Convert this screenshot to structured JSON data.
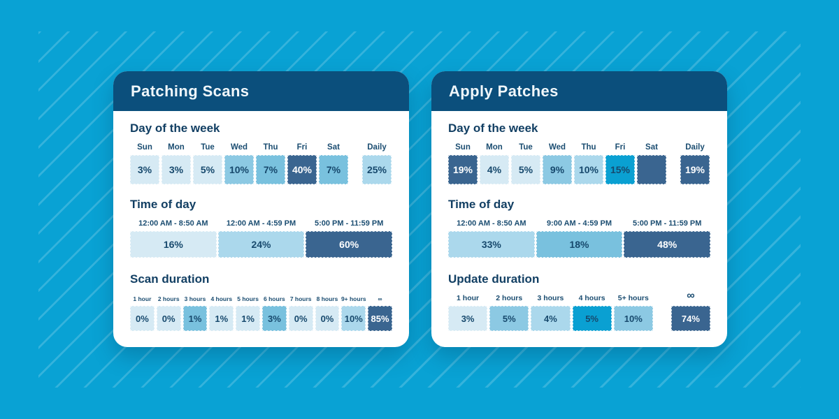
{
  "palette": {
    "background": "#09a2d4",
    "stripe": "rgba(255,255,255,0.18)",
    "card_header": "#0b4f7c",
    "card_background": "#ffffff",
    "text_navy": "#17496d",
    "tone_lightest": "#d6eaf4",
    "tone_light": "#abd8ec",
    "tone_medium": "#8cc9e3",
    "tone_medium_dark": "#79c1de",
    "tone_cyan": "#0aa0d2",
    "tone_navy": "#3a6590"
  },
  "cards": [
    {
      "title": "Patching Scans",
      "sections": {
        "day": {
          "heading": "Day of the week",
          "cells": [
            {
              "label": "Sun",
              "value": "3%",
              "tone": "t1"
            },
            {
              "label": "Mon",
              "value": "3%",
              "tone": "t1"
            },
            {
              "label": "Tue",
              "value": "5%",
              "tone": "t1"
            },
            {
              "label": "Wed",
              "value": "10%",
              "tone": "t3"
            },
            {
              "label": "Thu",
              "value": "7%",
              "tone": "t4"
            },
            {
              "label": "Fri",
              "value": "40%",
              "tone": "navy"
            },
            {
              "label": "Sat",
              "value": "7%",
              "tone": "t4"
            },
            {
              "label": "Daily",
              "value": "25%",
              "tone": "t2",
              "sep": true
            }
          ]
        },
        "time": {
          "heading": "Time of day",
          "cells": [
            {
              "label": "12:00 AM - 8:50 AM",
              "value": "16%",
              "tone": "t1"
            },
            {
              "label": "12:00 AM - 4:59 PM",
              "value": "24%",
              "tone": "t2"
            },
            {
              "label": "5:00 PM - 11:59 PM",
              "value": "60%",
              "tone": "navy"
            }
          ]
        },
        "duration": {
          "heading": "Scan duration",
          "cells": [
            {
              "label": "1 hour",
              "value": "0%",
              "tone": "t1"
            },
            {
              "label": "2 hours",
              "value": "0%",
              "tone": "t1"
            },
            {
              "label": "3 hours",
              "value": "1%",
              "tone": "t4"
            },
            {
              "label": "4 hours",
              "value": "1%",
              "tone": "t1"
            },
            {
              "label": "5 hours",
              "value": "1%",
              "tone": "t1"
            },
            {
              "label": "6 hours",
              "value": "3%",
              "tone": "t4"
            },
            {
              "label": "7 hours",
              "value": "0%",
              "tone": "t1"
            },
            {
              "label": "8 hours",
              "value": "0%",
              "tone": "t1"
            },
            {
              "label": "9+ hours",
              "value": "10%",
              "tone": "t2"
            },
            {
              "label": "∞",
              "value": "85%",
              "tone": "navy",
              "big": true
            }
          ]
        }
      }
    },
    {
      "title": "Apply Patches",
      "sections": {
        "day": {
          "heading": "Day of the week",
          "cells": [
            {
              "label": "Sun",
              "value": "19%",
              "tone": "navy"
            },
            {
              "label": "Mon",
              "value": "4%",
              "tone": "t1"
            },
            {
              "label": "Tue",
              "value": "5%",
              "tone": "t1"
            },
            {
              "label": "Wed",
              "value": "9%",
              "tone": "t3"
            },
            {
              "label": "Thu",
              "value": "10%",
              "tone": "t2"
            },
            {
              "label": "Fri",
              "value": "15%",
              "tone": "cyan"
            },
            {
              "label": "Sat",
              "value": "",
              "tone": "navy"
            },
            {
              "label": "Daily",
              "value": "19%",
              "tone": "navy",
              "sep": true
            }
          ]
        },
        "time": {
          "heading": "Time of day",
          "cells": [
            {
              "label": "12:00 AM - 8:50 AM",
              "value": "33%",
              "tone": "t2"
            },
            {
              "label": "9:00 AM - 4:59 PM",
              "value": "18%",
              "tone": "t4"
            },
            {
              "label": "5:00 PM - 11:59 PM",
              "value": "48%",
              "tone": "navy"
            }
          ]
        },
        "duration": {
          "heading": "Update duration",
          "cells": [
            {
              "label": "1 hour",
              "value": "3%",
              "tone": "t1"
            },
            {
              "label": "2 hours",
              "value": "5%",
              "tone": "t3"
            },
            {
              "label": "3 hours",
              "value": "4%",
              "tone": "t2"
            },
            {
              "label": "4 hours",
              "value": "5%",
              "tone": "cyan"
            },
            {
              "label": "5+ hours",
              "value": "10%",
              "tone": "t3"
            },
            {
              "label": "∞",
              "value": "74%",
              "tone": "navy",
              "big": true,
              "sep": true
            }
          ]
        }
      }
    }
  ],
  "chart_data": [
    {
      "type": "heatmap",
      "title": "Patching Scans",
      "legend_position": "none",
      "groups": [
        {
          "label": "Day of the week",
          "categories": [
            "Sun",
            "Mon",
            "Tue",
            "Wed",
            "Thu",
            "Fri",
            "Sat",
            "Daily"
          ],
          "values": [
            3,
            3,
            5,
            10,
            7,
            40,
            7,
            25
          ]
        },
        {
          "label": "Time of day",
          "categories": [
            "12:00 AM - 8:50 AM",
            "12:00 AM - 4:59 PM",
            "5:00 PM - 11:59 PM"
          ],
          "values": [
            16,
            24,
            60
          ]
        },
        {
          "label": "Scan duration",
          "categories": [
            "1 hour",
            "2 hours",
            "3 hours",
            "4 hours",
            "5 hours",
            "6 hours",
            "7 hours",
            "8 hours",
            "9+ hours",
            "∞"
          ],
          "values": [
            0,
            0,
            1,
            1,
            1,
            3,
            0,
            0,
            10,
            85
          ]
        }
      ]
    },
    {
      "type": "heatmap",
      "title": "Apply Patches",
      "legend_position": "none",
      "groups": [
        {
          "label": "Day of the week",
          "categories": [
            "Sun",
            "Mon",
            "Tue",
            "Wed",
            "Thu",
            "Fri",
            "Sat",
            "Daily"
          ],
          "values": [
            19,
            4,
            5,
            9,
            10,
            15,
            null,
            19
          ]
        },
        {
          "label": "Time of day",
          "categories": [
            "12:00 AM - 8:50 AM",
            "9:00 AM - 4:59 PM",
            "5:00 PM - 11:59 PM"
          ],
          "values": [
            33,
            18,
            48
          ]
        },
        {
          "label": "Update duration",
          "categories": [
            "1 hour",
            "2 hours",
            "3 hours",
            "4 hours",
            "5+ hours",
            "∞"
          ],
          "values": [
            3,
            5,
            4,
            5,
            10,
            74
          ]
        }
      ]
    }
  ]
}
